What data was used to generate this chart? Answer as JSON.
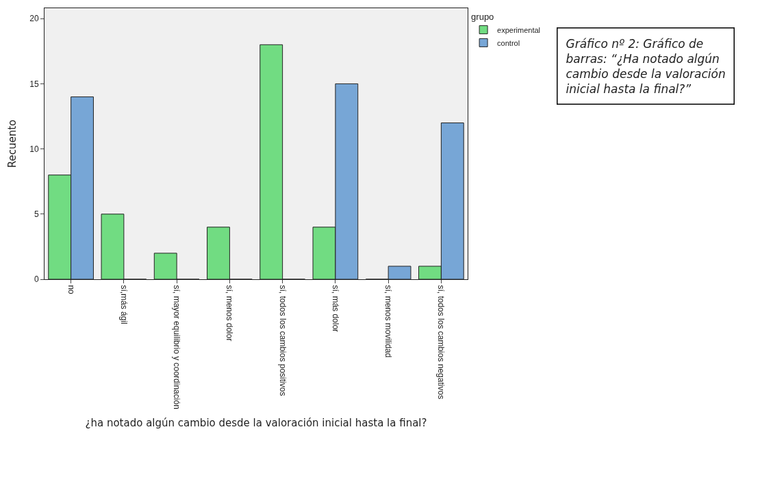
{
  "chart_data": {
    "type": "bar",
    "xlabel": "¿ha notado algún cambio desde la valoración inicial hasta la final?",
    "ylabel": "Recuento",
    "legend_title": "grupo",
    "categories": [
      "no",
      "sí,más ágil",
      "sí, mayor equilibrio y coordinación",
      "sí, menos dolor",
      "sí, todos los cambios positivos",
      "sí, más dolor",
      "sí, menos movilidad",
      "sí, todos los cambios negativos"
    ],
    "series": [
      {
        "name": "experimental",
        "color": "#71dc82",
        "values": [
          8,
          5,
          2,
          4,
          18,
          4,
          0,
          1
        ]
      },
      {
        "name": "control",
        "color": "#77a6d6",
        "values": [
          14,
          0,
          0,
          0,
          0,
          15,
          1,
          12
        ]
      }
    ],
    "ylim": [
      0,
      20.8
    ],
    "yticks": [
      0,
      5,
      10,
      15,
      20
    ],
    "grid": false,
    "legend": "top right",
    "annotations": [
      "Gráfico nº 2: Gráfico de barras: “¿Ha notado algún cambio desde la valoración inicial hasta la final?”"
    ]
  }
}
